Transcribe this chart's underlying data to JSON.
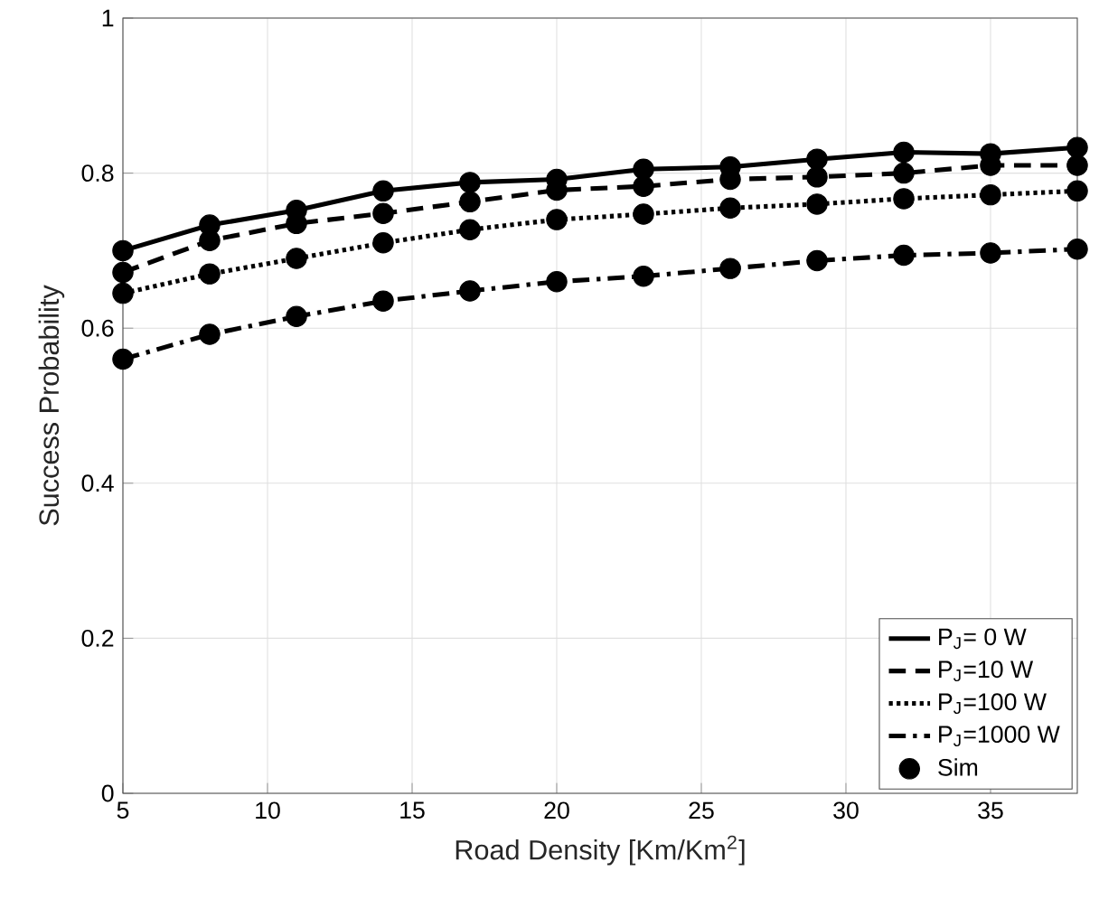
{
  "chart_data": {
    "type": "line",
    "xlabel": "Road Density [Km/Km$^{2}$]",
    "ylabel": "Success Probability",
    "x": [
      5,
      8,
      11,
      14,
      17,
      20,
      23,
      26,
      29,
      32,
      35,
      38
    ],
    "series": [
      {
        "name": "P$_{J}$= 0 W",
        "color": "#000000",
        "line_style": "solid",
        "values": [
          0.7,
          0.733,
          0.752,
          0.777,
          0.788,
          0.792,
          0.805,
          0.808,
          0.818,
          0.827,
          0.825,
          0.833
        ]
      },
      {
        "name": "P$_{J}$=10 W",
        "color": "#000000",
        "line_style": "dashed",
        "values": [
          0.672,
          0.713,
          0.735,
          0.748,
          0.763,
          0.778,
          0.783,
          0.792,
          0.795,
          0.8,
          0.81,
          0.81
        ]
      },
      {
        "name": "P$_{J}$=100 W",
        "color": "#000000",
        "line_style": "dotted",
        "values": [
          0.645,
          0.67,
          0.69,
          0.71,
          0.727,
          0.74,
          0.747,
          0.755,
          0.76,
          0.767,
          0.772,
          0.777
        ]
      },
      {
        "name": "P$_{J}$=1000 W",
        "color": "#000000",
        "line_style": "dashdot",
        "values": [
          0.56,
          0.592,
          0.615,
          0.635,
          0.648,
          0.66,
          0.667,
          0.677,
          0.687,
          0.694,
          0.697,
          0.702
        ]
      },
      {
        "name": "Sim",
        "type": "scatter",
        "marker": "circle",
        "color": "#000000",
        "x": [
          5,
          8,
          11,
          14,
          17,
          20,
          23,
          26,
          29,
          32,
          35,
          38,
          5,
          8,
          11,
          14,
          17,
          20,
          23,
          26,
          29,
          32,
          35,
          38,
          5,
          8,
          11,
          14,
          17,
          20,
          23,
          26,
          29,
          32,
          35,
          38,
          5,
          8,
          11,
          14,
          17,
          20,
          23,
          26,
          29,
          32,
          35,
          38
        ],
        "values": [
          0.7,
          0.733,
          0.752,
          0.777,
          0.788,
          0.792,
          0.805,
          0.808,
          0.818,
          0.827,
          0.825,
          0.833,
          0.672,
          0.713,
          0.735,
          0.748,
          0.763,
          0.778,
          0.783,
          0.792,
          0.795,
          0.8,
          0.81,
          0.81,
          0.645,
          0.67,
          0.69,
          0.71,
          0.727,
          0.74,
          0.747,
          0.755,
          0.76,
          0.767,
          0.772,
          0.777,
          0.56,
          0.592,
          0.615,
          0.635,
          0.648,
          0.66,
          0.667,
          0.677,
          0.687,
          0.694,
          0.697,
          0.702
        ]
      }
    ],
    "xlim": [
      5,
      38
    ],
    "ylim": [
      0,
      1
    ],
    "xticks": [
      5,
      10,
      15,
      20,
      25,
      30,
      35
    ],
    "yticks": [
      0,
      0.2,
      0.4,
      0.6,
      0.8,
      1
    ],
    "grid": true,
    "legend": "bottom right"
  }
}
